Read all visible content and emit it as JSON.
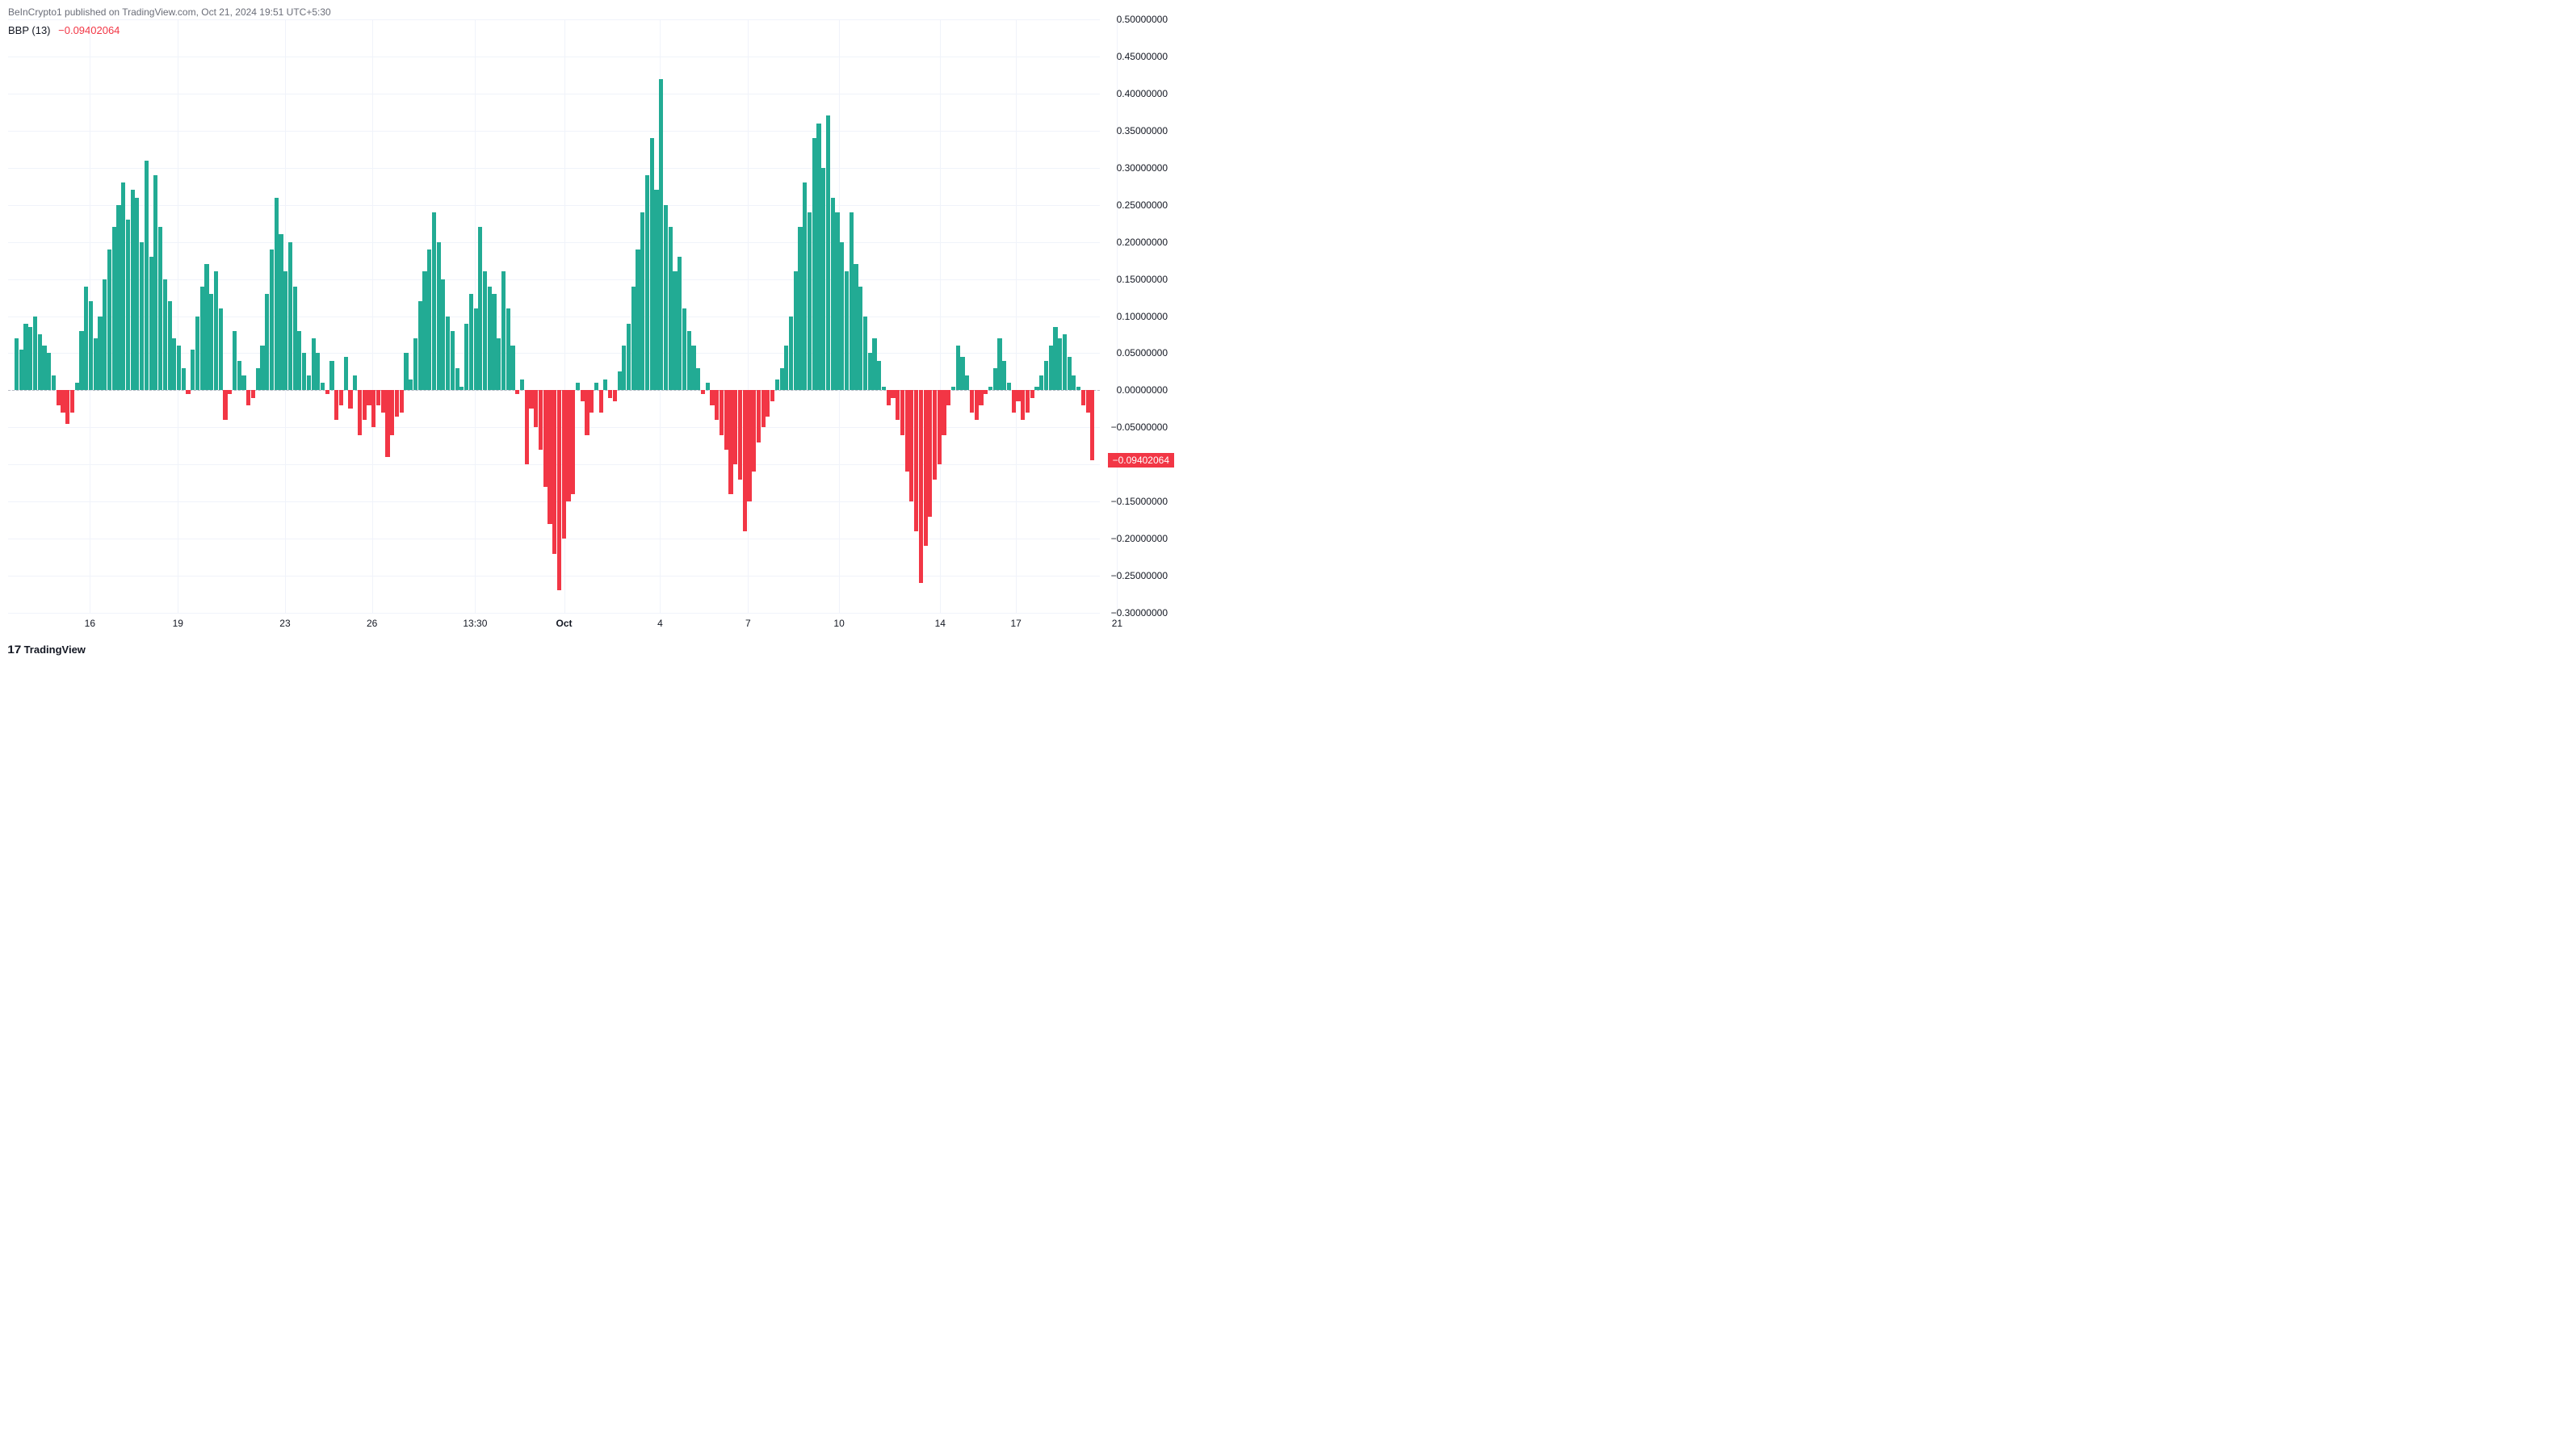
{
  "attribution": "BeInCrypto1 published on TradingView.com, Oct 21, 2024 19:51 UTC+5:30",
  "indicator": {
    "name": "BBP (13)",
    "value": "−0.09402064"
  },
  "chart": {
    "type": "bar",
    "background_color": "#ffffff",
    "grid_color": "#f0f3fa",
    "positive_color": "#22ab94",
    "negative_color": "#f23645",
    "text_color": "#131722",
    "ylim": [
      -0.3,
      0.5
    ],
    "yticks": [
      0.5,
      0.45,
      0.4,
      0.35,
      0.3,
      0.25,
      0.2,
      0.15,
      0.1,
      0.05,
      0.0,
      -0.05,
      -0.1,
      -0.15,
      -0.2,
      -0.25,
      -0.3
    ],
    "ytick_labels": [
      "0.50000000",
      "0.45000000",
      "0.40000000",
      "0.35000000",
      "0.30000000",
      "0.25000000",
      "0.20000000",
      "0.15000000",
      "0.10000000",
      "0.05000000",
      "0.00000000",
      "−0.05000000",
      "−0.10000000",
      "−0.15000000",
      "−0.20000000",
      "−0.25000000",
      "−0.30000000"
    ],
    "current_value": -0.09402064,
    "current_label": "−0.09402064",
    "xticks": [
      {
        "pos": 0.049,
        "label": "16"
      },
      {
        "pos": 0.136,
        "label": "19"
      },
      {
        "pos": 0.242,
        "label": "23"
      },
      {
        "pos": 0.328,
        "label": "26"
      },
      {
        "pos": 0.43,
        "label": "13:30"
      },
      {
        "pos": 0.518,
        "label": "Oct",
        "bold": true
      },
      {
        "pos": 0.613,
        "label": "4"
      },
      {
        "pos": 0.7,
        "label": "7"
      },
      {
        "pos": 0.79,
        "label": "10"
      },
      {
        "pos": 0.89,
        "label": "14"
      },
      {
        "pos": 0.965,
        "label": "17"
      },
      {
        "pos": 1.065,
        "label": "21"
      }
    ],
    "bars": [
      0.07,
      0.055,
      0.09,
      0.085,
      0.1,
      0.075,
      0.06,
      0.05,
      0.02,
      -0.02,
      -0.03,
      -0.045,
      -0.03,
      0.01,
      0.08,
      0.14,
      0.12,
      0.07,
      0.1,
      0.15,
      0.19,
      0.22,
      0.25,
      0.28,
      0.23,
      0.27,
      0.26,
      0.2,
      0.31,
      0.18,
      0.29,
      0.22,
      0.15,
      0.12,
      0.07,
      0.06,
      0.03,
      -0.005,
      0.055,
      0.1,
      0.14,
      0.17,
      0.13,
      0.16,
      0.11,
      -0.04,
      -0.005,
      0.08,
      0.04,
      0.02,
      -0.02,
      -0.01,
      0.03,
      0.06,
      0.13,
      0.19,
      0.26,
      0.21,
      0.16,
      0.2,
      0.14,
      0.08,
      0.05,
      0.02,
      0.07,
      0.05,
      0.01,
      -0.005,
      0.04,
      -0.04,
      -0.02,
      0.045,
      -0.025,
      0.02,
      -0.06,
      -0.04,
      -0.02,
      -0.05,
      -0.02,
      -0.03,
      -0.09,
      -0.06,
      -0.035,
      -0.03,
      0.05,
      0.015,
      0.07,
      0.12,
      0.16,
      0.19,
      0.24,
      0.2,
      0.15,
      0.1,
      0.08,
      0.03,
      0.005,
      0.09,
      0.13,
      0.11,
      0.22,
      0.16,
      0.14,
      0.13,
      0.07,
      0.16,
      0.11,
      0.06,
      -0.005,
      0.015,
      -0.1,
      -0.025,
      -0.05,
      -0.08,
      -0.13,
      -0.18,
      -0.22,
      -0.27,
      -0.2,
      -0.15,
      -0.14,
      0.01,
      -0.015,
      -0.06,
      -0.03,
      0.01,
      -0.03,
      0.015,
      -0.01,
      -0.015,
      0.025,
      0.06,
      0.09,
      0.14,
      0.19,
      0.24,
      0.29,
      0.34,
      0.27,
      0.42,
      0.25,
      0.22,
      0.16,
      0.18,
      0.11,
      0.08,
      0.06,
      0.03,
      -0.005,
      0.01,
      -0.02,
      -0.04,
      -0.06,
      -0.08,
      -0.14,
      -0.1,
      -0.12,
      -0.19,
      -0.15,
      -0.11,
      -0.07,
      -0.05,
      -0.035,
      -0.015,
      0.015,
      0.03,
      0.06,
      0.1,
      0.16,
      0.22,
      0.28,
      0.24,
      0.34,
      0.36,
      0.3,
      0.37,
      0.26,
      0.24,
      0.2,
      0.16,
      0.24,
      0.17,
      0.14,
      0.1,
      0.05,
      0.07,
      0.04,
      0.005,
      -0.02,
      -0.01,
      -0.04,
      -0.06,
      -0.11,
      -0.15,
      -0.19,
      -0.26,
      -0.21,
      -0.17,
      -0.12,
      -0.1,
      -0.06,
      -0.02,
      0.005,
      0.06,
      0.045,
      0.02,
      -0.03,
      -0.04,
      -0.02,
      -0.005,
      0.005,
      0.03,
      0.07,
      0.04,
      0.01,
      -0.03,
      -0.015,
      -0.04,
      -0.03,
      -0.01,
      0.005,
      0.02,
      0.04,
      0.06,
      0.085,
      0.07,
      0.075,
      0.045,
      0.02,
      0.005,
      -0.02,
      -0.03,
      -0.094
    ],
    "bar_width": 5.2,
    "label_fontsize": 12
  },
  "logo": "TradingView"
}
